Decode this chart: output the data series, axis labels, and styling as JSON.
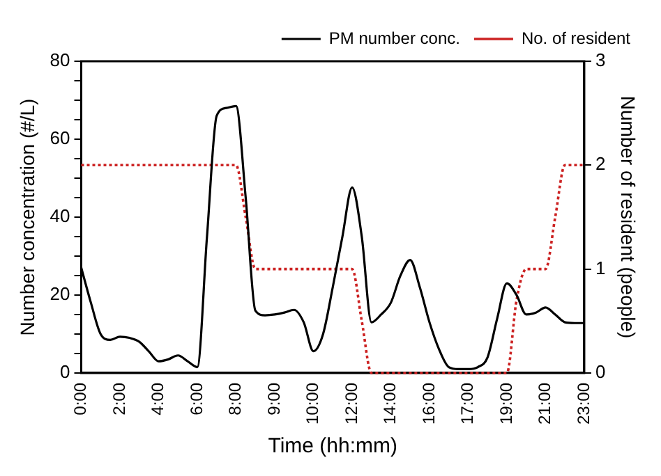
{
  "chart_data": {
    "type": "line",
    "xlabel": "Time (hh:mm)",
    "ylabel": "Number concentration (#/L)",
    "y2label": "Number of resident (people)",
    "categories": [
      "0:00",
      null,
      null,
      null,
      "2:00",
      null,
      null,
      null,
      "4:00",
      null,
      null,
      null,
      "6:00",
      null,
      null,
      null,
      "8:00",
      null,
      null,
      null,
      "9:00",
      null,
      null,
      null,
      "10:00",
      null,
      null,
      null,
      "12:00",
      null,
      null,
      null,
      "14:00",
      null,
      null,
      null,
      "16:00",
      null,
      null,
      null,
      "17:00",
      null,
      null,
      null,
      "19:00",
      null,
      null,
      null,
      "21:00",
      null,
      null,
      null,
      "23:00"
    ],
    "series": [
      {
        "name": "PM number conc.",
        "color": "#000000",
        "line_style": "solid",
        "values": [
          27,
          18,
          10,
          8.5,
          9.3,
          9,
          8,
          5.5,
          3,
          3.5,
          4.5,
          3,
          1.5,
          35,
          66,
          68,
          68.5,
          45,
          16,
          14.8,
          15,
          15.5,
          16.2,
          13,
          5.6,
          10,
          22,
          35,
          47.6,
          35,
          13,
          15,
          18,
          25,
          29,
          22,
          13,
          6,
          1.5,
          1,
          1,
          1.5,
          4,
          14,
          23,
          20,
          15,
          15.5,
          16.8,
          15,
          13,
          12.8,
          12.8
        ]
      },
      {
        "name": "No. of resident",
        "color": "#cc2222",
        "line_style": "dotted",
        "axis": "y2",
        "values": [
          2,
          2,
          2,
          2,
          2,
          2,
          2,
          2,
          2,
          2,
          2,
          2,
          2,
          2,
          2,
          2,
          2,
          1.5,
          1,
          1,
          1,
          1,
          1,
          1,
          1,
          1,
          1,
          1,
          1,
          0.5,
          0,
          0,
          0,
          0,
          0,
          0,
          0,
          0,
          0,
          0,
          0,
          0,
          0,
          0,
          0,
          0.7,
          1,
          1,
          1,
          1.5,
          2,
          2,
          2
        ]
      }
    ],
    "ylim": [
      0,
      80
    ],
    "yticks": [
      0,
      {
        "value": 5,
        "label": null
      },
      {
        "value": 10,
        "label": null
      },
      {
        "value": 15,
        "label": null
      },
      20,
      {
        "value": 25,
        "label": null
      },
      {
        "value": 30,
        "label": null
      },
      {
        "value": 35,
        "label": null
      },
      40,
      {
        "value": 45,
        "label": null
      },
      {
        "value": 50,
        "label": null
      },
      {
        "value": 55,
        "label": null
      },
      60,
      {
        "value": 65,
        "label": null
      },
      {
        "value": 70,
        "label": null
      },
      {
        "value": 75,
        "label": null
      },
      80
    ],
    "y2lim": [
      0,
      3
    ],
    "y2ticks": [
      0,
      1,
      2,
      3
    ],
    "legend": "top right"
  }
}
